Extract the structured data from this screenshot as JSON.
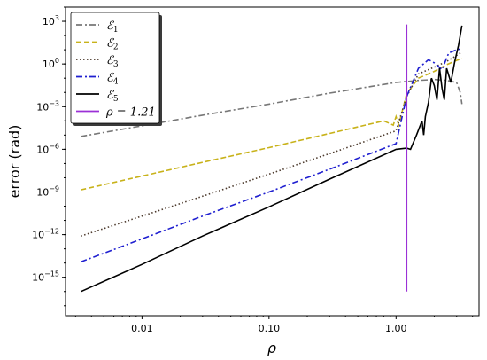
{
  "chart_data": {
    "type": "line",
    "xscale": "log",
    "yscale": "log",
    "xlabel": "ρ",
    "ylabel": "error (rad)",
    "xlim": [
      0.0025,
      4.5
    ],
    "ylim": [
      2e-18,
      10000.0
    ],
    "xticks": [
      0.01,
      0.1,
      1.0
    ],
    "xtick_labels": [
      "0.01",
      "0.10",
      "1.00"
    ],
    "yticks": [
      1000.0,
      1,
      0.001,
      1e-06,
      1e-09,
      1e-12,
      1e-15
    ],
    "ytick_labels": [
      "10^3",
      "10^0",
      "10^-3",
      "10^-6",
      "10^-9",
      "10^-12",
      "10^-15"
    ],
    "legend": {
      "placement": "top-left"
    },
    "vline": {
      "x": 1.21,
      "label": "ρ = 1.21",
      "color": "#9b30d6"
    },
    "series": [
      {
        "name": "ℰ1",
        "label_main": "ℰ",
        "label_sub": "1",
        "color": "#777777",
        "style": "dashdot",
        "x": [
          0.0033,
          0.01,
          0.03,
          0.1,
          0.3,
          1.0,
          1.5,
          2.0,
          2.5,
          3.0,
          3.2,
          3.3
        ],
        "y": [
          8e-06,
          4.5e-05,
          0.00025,
          0.0015,
          0.009,
          0.05,
          0.07,
          0.08,
          0.07,
          0.05,
          0.01,
          0.0015
        ]
      },
      {
        "name": "ℰ2",
        "label_main": "ℰ",
        "label_sub": "2",
        "color": "#c8b21a",
        "style": "dashed",
        "x": [
          0.0033,
          0.01,
          0.03,
          0.1,
          0.3,
          0.8,
          0.95,
          1.0,
          1.05,
          1.21,
          1.5,
          2.0,
          2.5,
          3.0,
          3.3
        ],
        "y": [
          1.4e-09,
          1.3e-08,
          1.2e-07,
          1.3e-06,
          1.3e-05,
          0.0001,
          5e-05,
          0.0002,
          5e-05,
          0.008,
          0.1,
          0.3,
          0.9,
          1.8,
          2.4
        ]
      },
      {
        "name": "ℰ3",
        "label_main": "ℰ",
        "label_sub": "3",
        "color": "#4d3b2e",
        "style": "dotted",
        "x": [
          0.0033,
          0.01,
          0.03,
          0.1,
          0.3,
          1.0,
          1.21,
          1.5,
          2.0,
          2.5,
          3.0,
          3.3
        ],
        "y": [
          8e-13,
          2e-11,
          5e-10,
          1.8e-08,
          5e-07,
          2e-05,
          0.005,
          0.2,
          0.6,
          1.5,
          4,
          7
        ]
      },
      {
        "name": "ℰ4",
        "label_main": "ℰ",
        "label_sub": "4",
        "color": "#1f1fd0",
        "style": "dashdot",
        "x": [
          0.0033,
          0.01,
          0.03,
          0.1,
          0.3,
          1.0,
          1.21,
          1.5,
          1.8,
          2.0,
          2.3,
          2.6,
          3.0,
          3.3
        ],
        "y": [
          1.2e-14,
          5e-13,
          2e-11,
          1e-09,
          4e-08,
          2.5e-06,
          0.005,
          0.5,
          2,
          1.2,
          0.4,
          6,
          10,
          12
        ]
      },
      {
        "name": "ℰ5",
        "label_main": "ℰ",
        "label_sub": "5",
        "color": "#000000",
        "style": "solid",
        "x": [
          0.0033,
          0.01,
          0.03,
          0.1,
          0.3,
          1.0,
          1.21,
          1.3,
          1.45,
          1.6,
          1.65,
          1.7,
          1.8,
          1.9,
          2.0,
          2.1,
          2.2,
          2.3,
          2.4,
          2.5,
          2.7,
          2.9,
          3.1,
          3.3
        ],
        "y": [
          1e-16,
          8e-15,
          8e-13,
          9e-11,
          8e-09,
          1e-06,
          1.2e-06,
          1e-06,
          1e-05,
          0.0001,
          1e-05,
          0.0002,
          0.002,
          0.1,
          0.03,
          0.003,
          0.5,
          0.02,
          0.003,
          0.5,
          0.05,
          1.5,
          20,
          500
        ]
      }
    ]
  }
}
